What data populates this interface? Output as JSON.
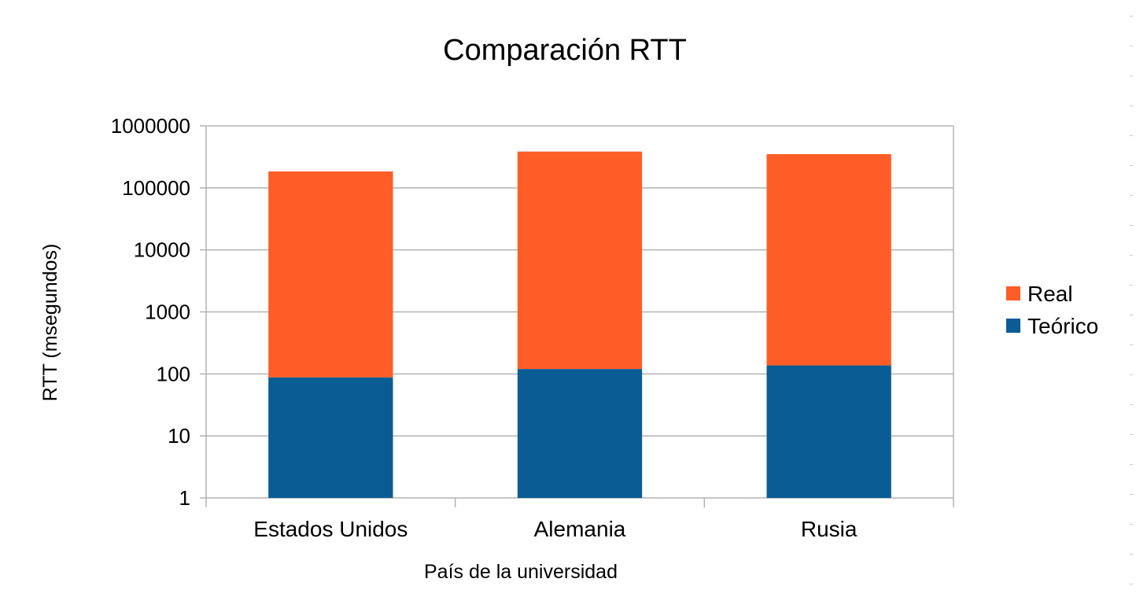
{
  "chart_data": {
    "type": "bar",
    "stacked": true,
    "title": "Comparación RTT",
    "xlabel": "País de la universidad",
    "ylabel": "RTT (msegundos)",
    "scale": "log",
    "ylim": [
      1,
      1000000
    ],
    "yticks": [
      "1",
      "10",
      "100",
      "1000",
      "10000",
      "100000",
      "1000000"
    ],
    "categories": [
      "Estados Unidos",
      "Alemania",
      "Rusia"
    ],
    "series": [
      {
        "name": "Teórico",
        "color": "#0a5c94",
        "values": [
          88,
          120,
          137
        ]
      },
      {
        "name": "Real",
        "color": "#ff5d28",
        "values": [
          184000,
          385000,
          350000
        ]
      }
    ],
    "legend_order": [
      "Real",
      "Teórico"
    ],
    "legend": "right",
    "grid": true,
    "gridline_color": "#b3b3b3"
  }
}
